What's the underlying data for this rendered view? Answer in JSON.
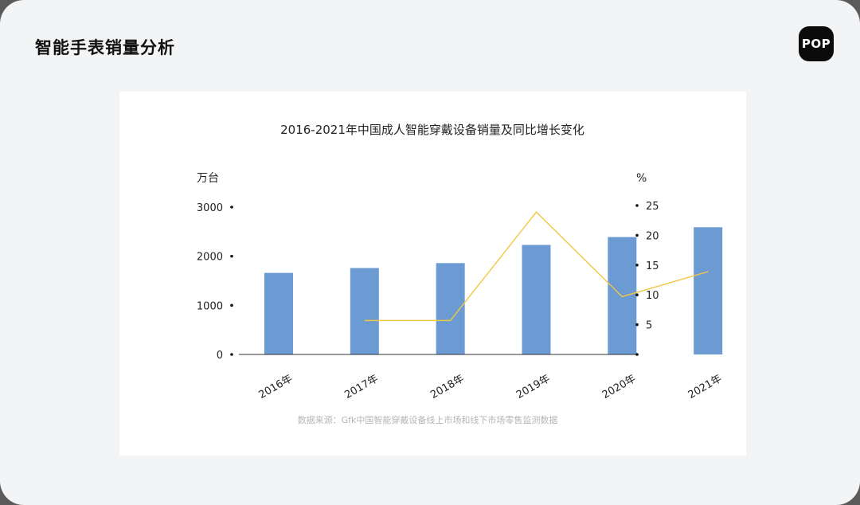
{
  "page": {
    "title": "智能手表销量分析",
    "logo_text": "POP"
  },
  "chart_data": {
    "type": "bar",
    "title": "2016-2021年中国成人智能穿戴设备销量及同比增长变化",
    "categories": [
      "2016年",
      "2017年",
      "2018年",
      "2019年",
      "2020年",
      "2021年"
    ],
    "y_left": {
      "unit": "万台",
      "ticks": [
        0,
        1000,
        2000,
        3000
      ],
      "range": [
        0,
        3000
      ]
    },
    "y_right": {
      "unit": "%",
      "ticks": [
        0,
        5,
        10,
        15,
        20,
        25
      ],
      "tick_labels": [
        "",
        "5",
        "10",
        "15",
        "20",
        "25"
      ],
      "range": [
        0,
        25
      ]
    },
    "series": [
      {
        "type": "bar",
        "axis": "left",
        "color": "#6b9bd2",
        "values": [
          1660,
          1760,
          1860,
          2230,
          2390,
          2590
        ]
      },
      {
        "type": "line",
        "axis": "right",
        "color": "#f2c744",
        "values": [
          null,
          5.7,
          5.7,
          23.9,
          9.7,
          13.9
        ]
      }
    ],
    "source": "数据来源：Gfk中国智能穿戴设备线上市场和线下市场零售监测数据",
    "grid": false
  }
}
